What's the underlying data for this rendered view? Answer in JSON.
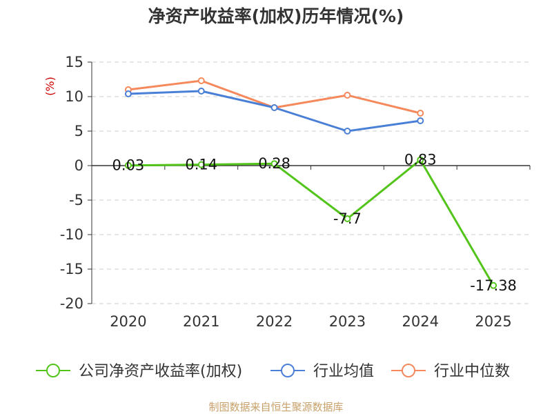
{
  "chart_data": {
    "type": "line",
    "title": "净资产收益率(加权)历年情况(%)",
    "ylabel": "(%)",
    "xlabel": "",
    "categories": [
      "2020",
      "2021",
      "2022",
      "2023",
      "2024",
      "2025"
    ],
    "ylim": [
      -20,
      15
    ],
    "yticks": [
      15,
      10,
      5,
      0,
      -5,
      -10,
      -15,
      -20
    ],
    "grid": true,
    "legend_position": "bottom",
    "series": [
      {
        "name": "公司净资产收益率(加权)",
        "color": "#52c41a",
        "values": [
          0.03,
          0.14,
          0.28,
          -7.7,
          0.83,
          -17.38
        ],
        "labels": [
          "0.03",
          "0.14",
          "0.28",
          "-7.7",
          "0.83",
          "-17.38"
        ]
      },
      {
        "name": "行业均值",
        "color": "#4a7fd6",
        "values": [
          10.4,
          10.8,
          8.4,
          5.0,
          6.5,
          null
        ]
      },
      {
        "name": "行业中位数",
        "color": "#f5895c",
        "values": [
          11.0,
          12.3,
          8.4,
          10.2,
          7.6,
          null
        ]
      }
    ]
  },
  "source_text": "制图数据来自恒生聚源数据库"
}
